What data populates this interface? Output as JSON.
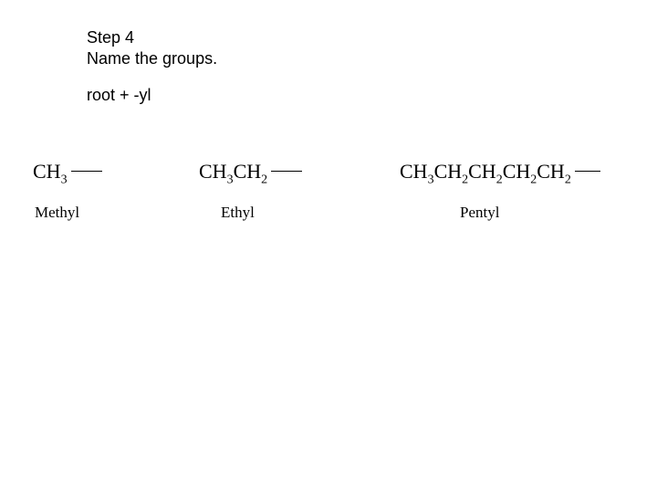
{
  "heading": {
    "step": "Step 4",
    "title": "Name the groups."
  },
  "rule": "root + -yl",
  "colors": {
    "background": "#ffffff",
    "text": "#000000"
  },
  "typography": {
    "heading_family": "Arial",
    "heading_size_pt": 14,
    "formula_family": "Times New Roman",
    "formula_size_pt": 17,
    "name_size_pt": 13
  },
  "groups": [
    {
      "id": "methyl",
      "formula_units": [
        {
          "base": "CH",
          "sub": "3"
        }
      ],
      "name": "Methyl"
    },
    {
      "id": "ethyl",
      "formula_units": [
        {
          "base": "CH",
          "sub": "3"
        },
        {
          "base": "CH",
          "sub": "2"
        }
      ],
      "name": "Ethyl"
    },
    {
      "id": "pentyl",
      "formula_units": [
        {
          "base": "CH",
          "sub": "3"
        },
        {
          "base": "CH",
          "sub": "2"
        },
        {
          "base": "CH",
          "sub": "2"
        },
        {
          "base": "CH",
          "sub": "2"
        },
        {
          "base": "CH",
          "sub": "2"
        }
      ],
      "name": "Pentyl"
    }
  ]
}
